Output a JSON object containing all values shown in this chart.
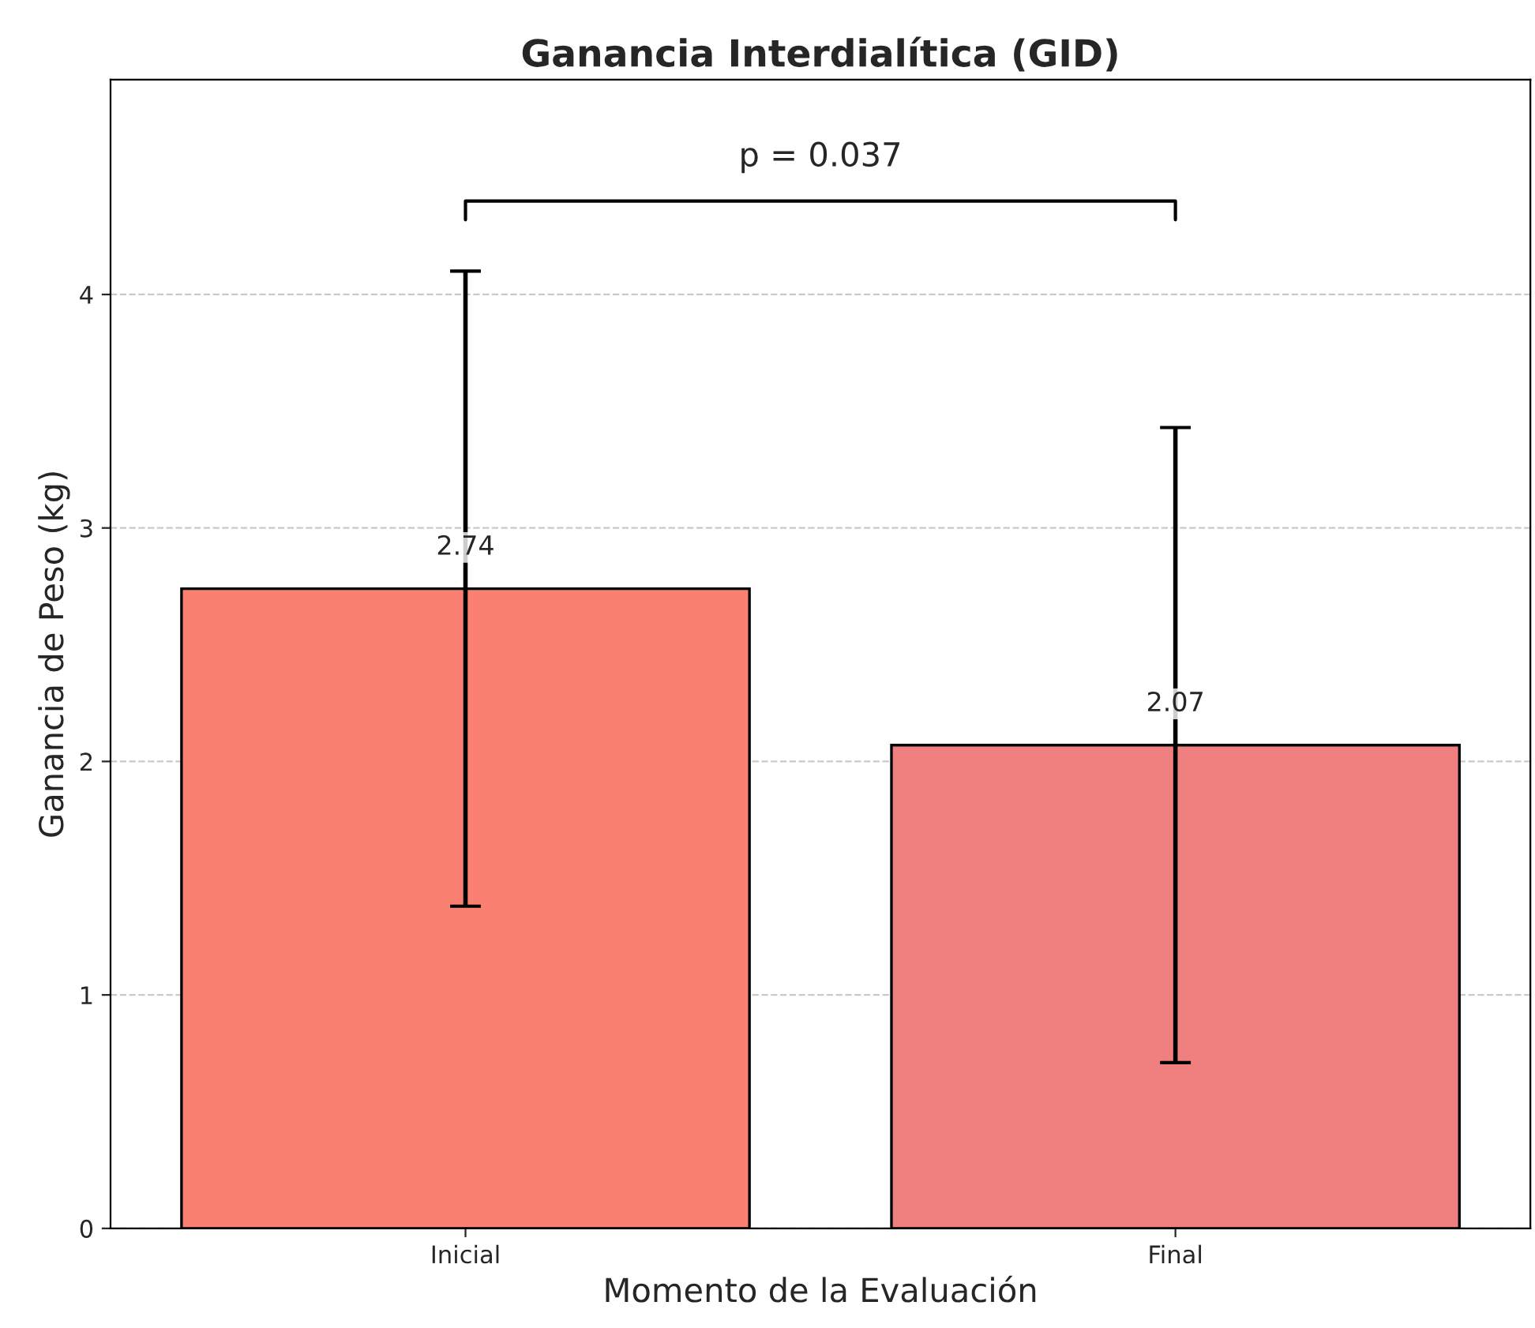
{
  "chart_data": {
    "type": "bar",
    "title": "Ganancia Interdialítica (GID)",
    "xlabel": "Momento de la Evaluación",
    "ylabel": "Ganancia de Peso (kg)",
    "categories": [
      "Inicial",
      "Final"
    ],
    "values": [
      2.74,
      2.07
    ],
    "colors": [
      "#fa8072",
      "#f08080"
    ],
    "errors": [
      1.36,
      1.36
    ],
    "data_labels": true,
    "ylim": [
      0,
      4.92
    ],
    "yticks": [
      0,
      1,
      2,
      3,
      4
    ],
    "grid": "y",
    "annotations": [
      "p = 0.037"
    ]
  }
}
